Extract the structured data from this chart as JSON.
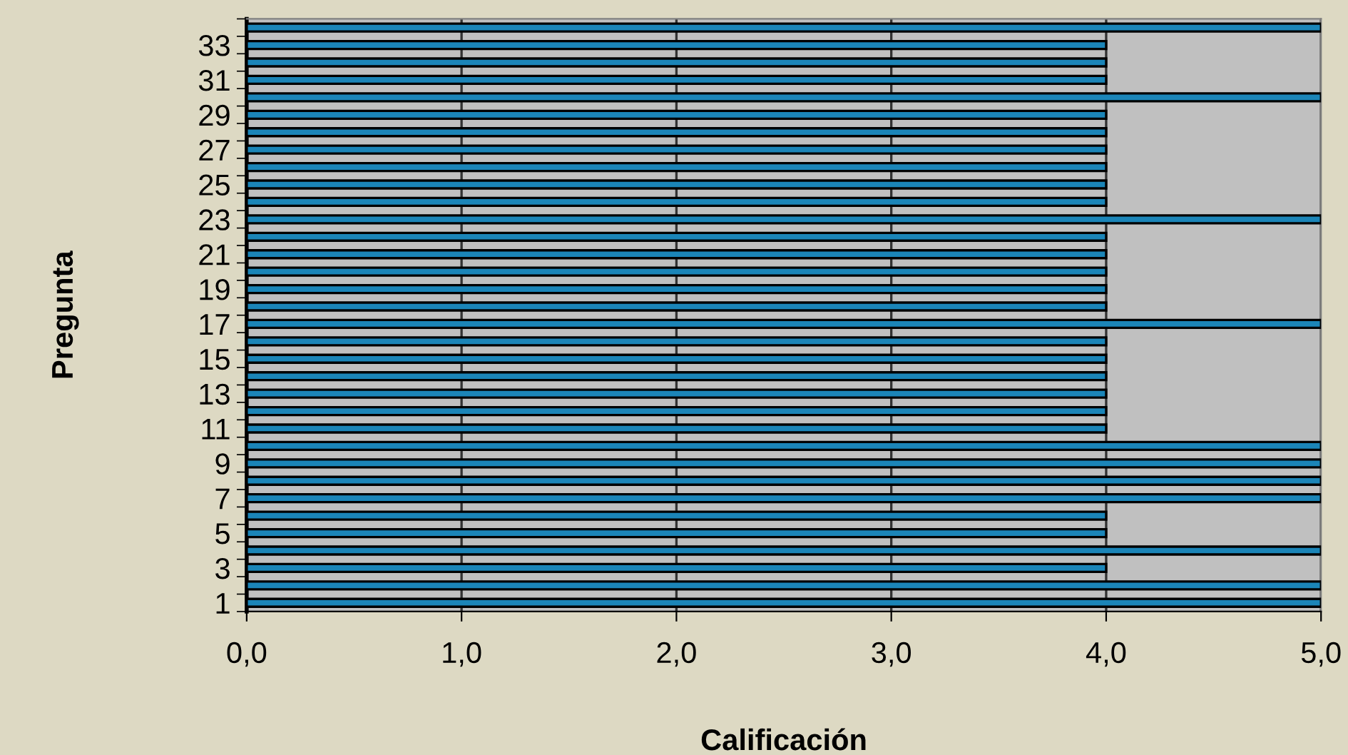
{
  "chart_data": {
    "type": "bar",
    "orientation": "horizontal",
    "xlabel": "Calificación",
    "ylabel": "Pregunta",
    "categories": [
      null,
      "33",
      null,
      "31",
      null,
      "29",
      null,
      "27",
      null,
      "25",
      null,
      "23",
      null,
      "21",
      null,
      "19",
      null,
      "17",
      null,
      "15",
      null,
      "13",
      null,
      "11",
      null,
      "9",
      null,
      "7",
      null,
      "5",
      null,
      "3",
      null,
      "1"
    ],
    "values": [
      5,
      4,
      4,
      4,
      5,
      4,
      4,
      4,
      4,
      4,
      4,
      5,
      4,
      4,
      4,
      4,
      4,
      5,
      4,
      4,
      4,
      4,
      4,
      4,
      5,
      5,
      5,
      5,
      4,
      4,
      5,
      4,
      5,
      5
    ],
    "color": "#1b85b8",
    "xlim": [
      0,
      5
    ],
    "xticks": [
      {
        "value": 0,
        "label": "0,0"
      },
      {
        "value": 1,
        "label": "1,0"
      },
      {
        "value": 2,
        "label": "2,0"
      },
      {
        "value": 3,
        "label": "3,0"
      },
      {
        "value": 4,
        "label": "4,0"
      },
      {
        "value": 5,
        "label": "5,0"
      }
    ],
    "grid": "x",
    "legend": false
  }
}
